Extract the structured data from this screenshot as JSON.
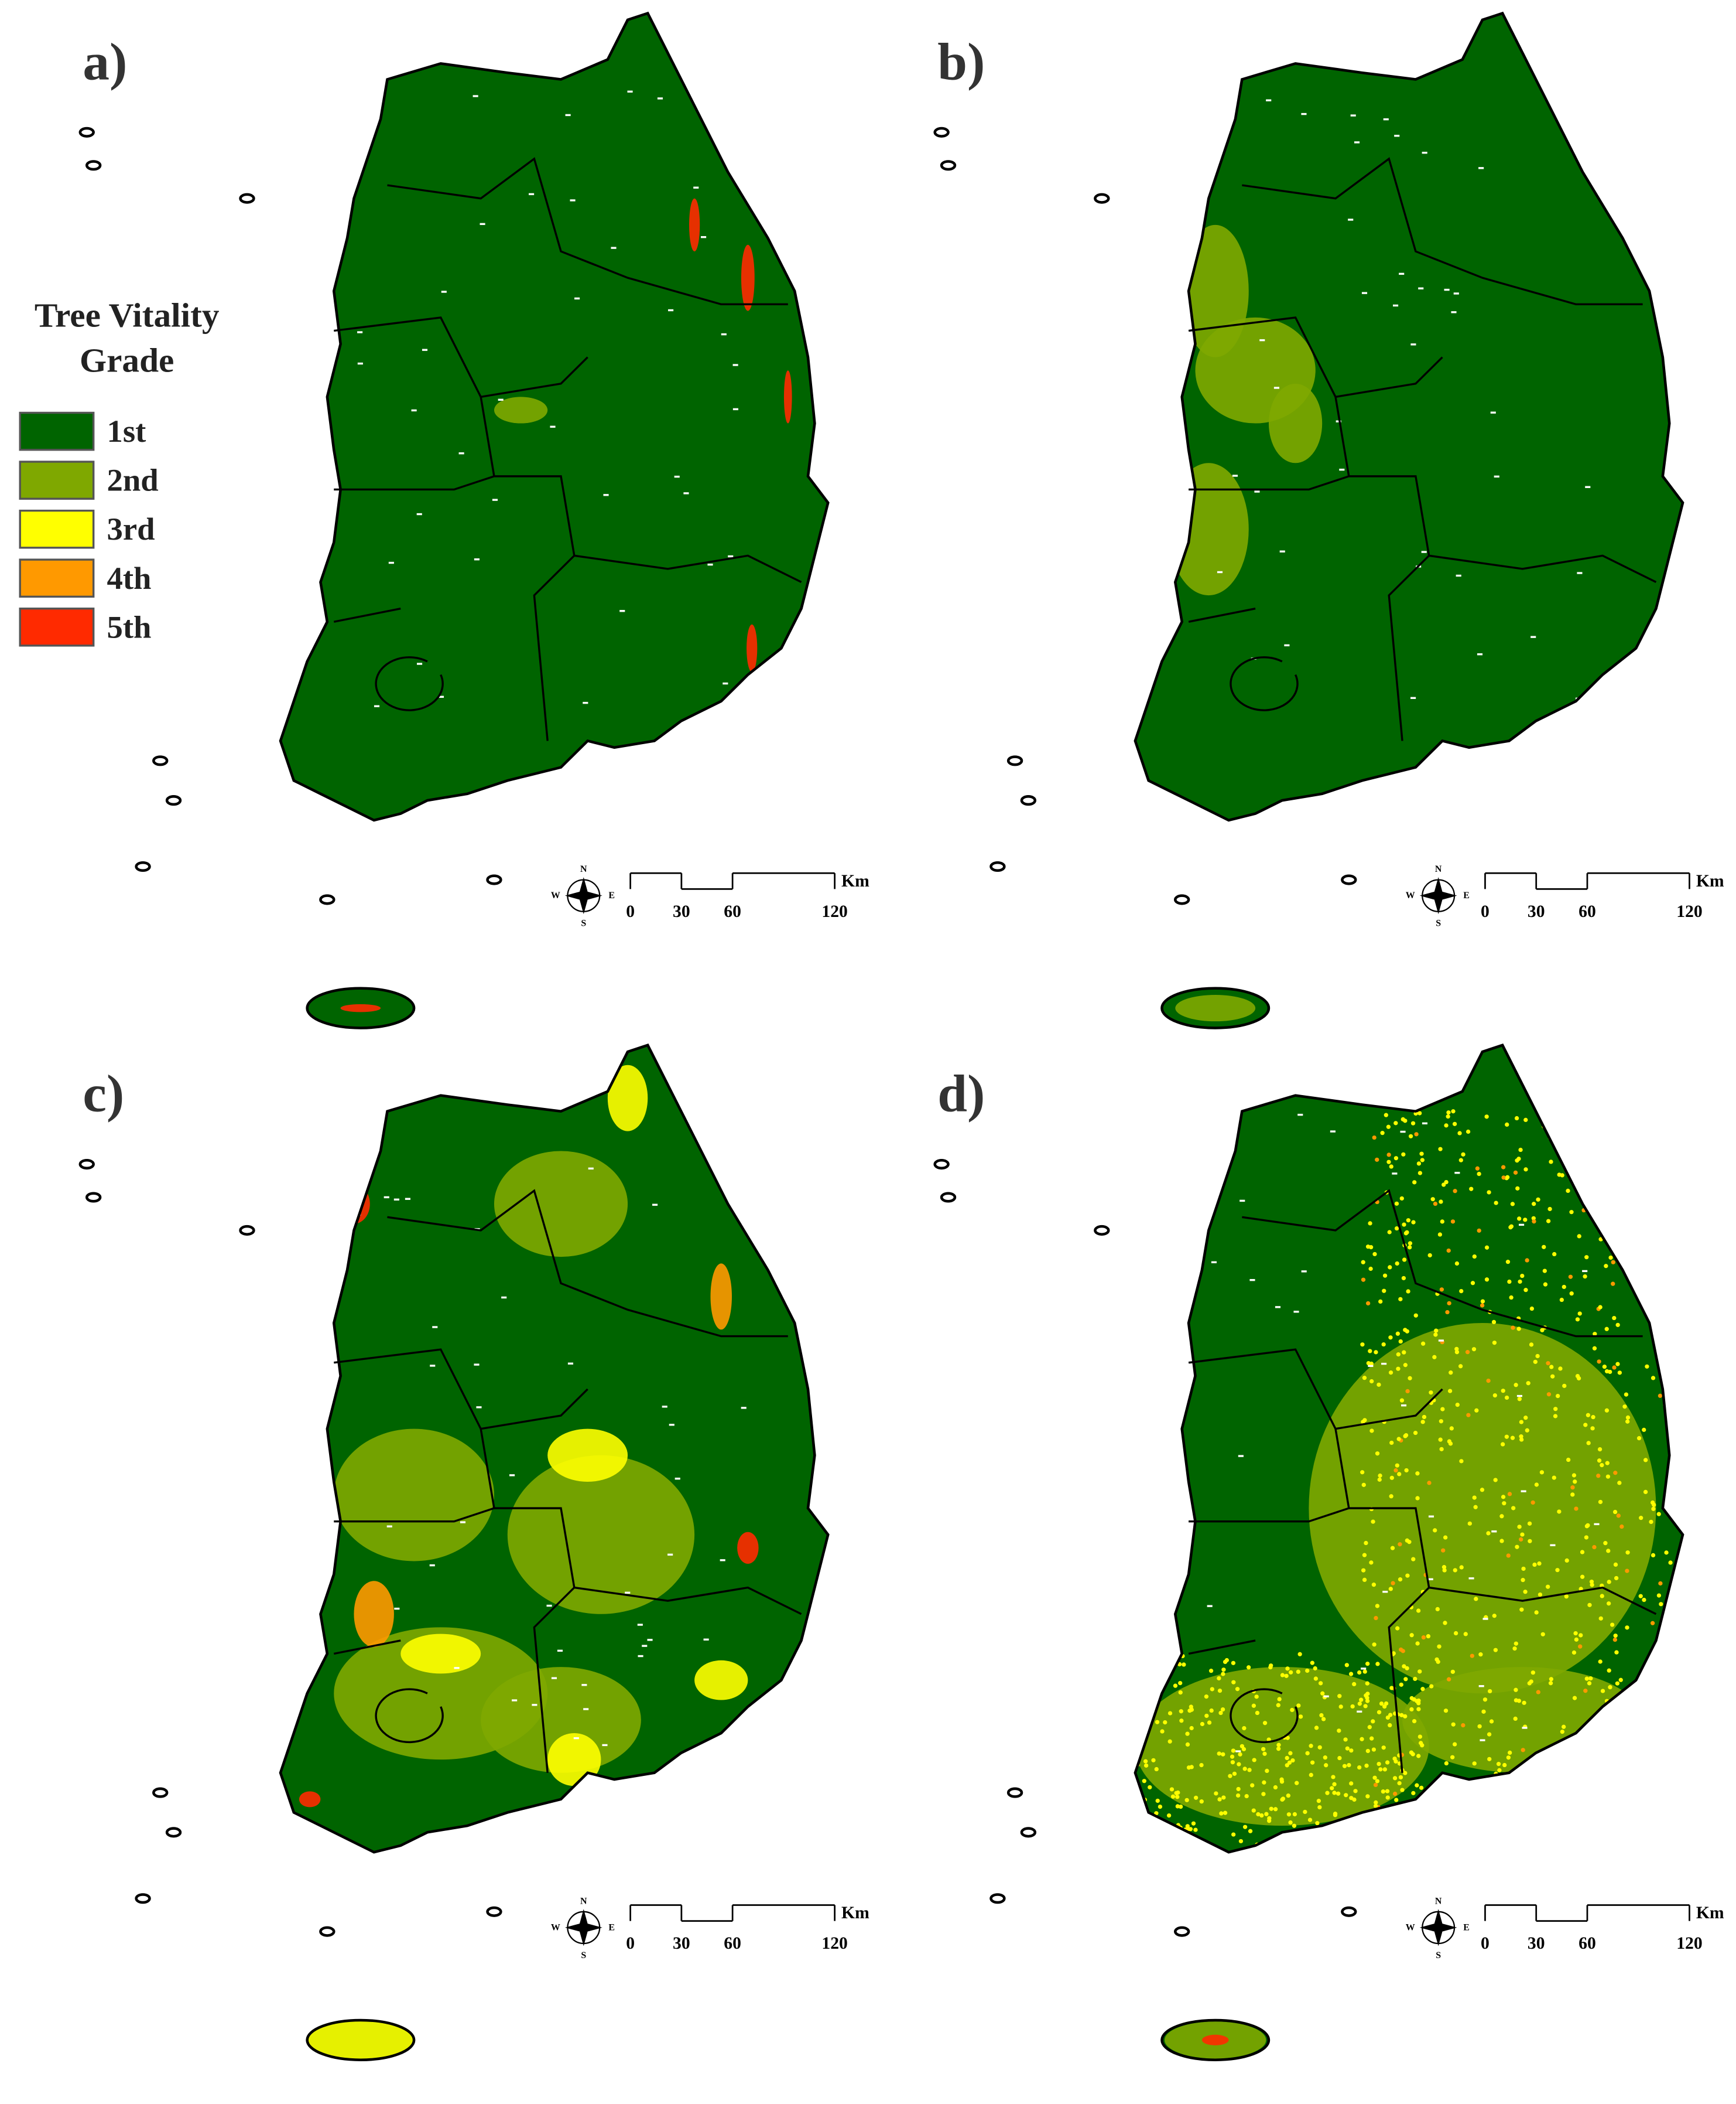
{
  "panels": [
    {
      "label": "a)"
    },
    {
      "label": "b)"
    },
    {
      "label": "c)"
    },
    {
      "label": "d)"
    }
  ],
  "legend": {
    "title": "Tree Vitality Grade",
    "items": [
      {
        "label": "1st",
        "color": "#006400"
      },
      {
        "label": "2nd",
        "color": "#7fa800"
      },
      {
        "label": "3rd",
        "color": "#ffff00"
      },
      {
        "label": "4th",
        "color": "#ff9900"
      },
      {
        "label": "5th",
        "color": "#ff2a00"
      }
    ]
  },
  "scale_bar": {
    "ticks": [
      0,
      30,
      60,
      120
    ],
    "unit": "Km"
  },
  "compass": {
    "n": "N",
    "s": "S",
    "w": "W",
    "e": "E"
  }
}
